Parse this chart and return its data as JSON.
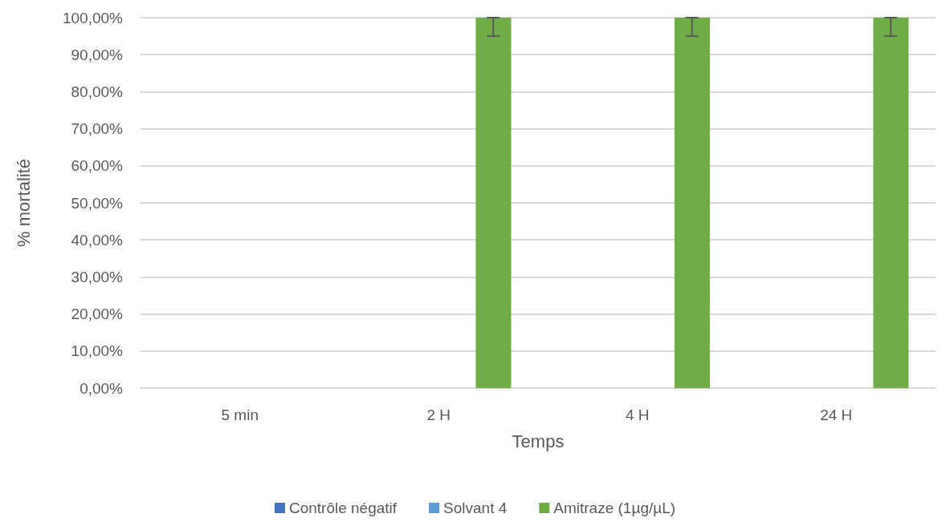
{
  "chart_data": {
    "type": "bar",
    "xlabel": "Temps",
    "ylabel": "% mortalité",
    "categories": [
      "5 min",
      "2 H",
      "4 H",
      "24 H"
    ],
    "series": [
      {
        "name": "Contrôle négatif",
        "color": "#4472c4",
        "values": [
          0,
          0,
          0,
          0
        ]
      },
      {
        "name": "Solvant 4",
        "color": "#5b9bd5",
        "values": [
          0,
          0,
          0,
          0
        ]
      },
      {
        "name": "Amitraze (1µg/µL)",
        "color": "#70ad47",
        "values": [
          0,
          100,
          100,
          100
        ],
        "errors": [
          null,
          [
            95,
            100
          ],
          [
            95,
            100
          ],
          [
            95,
            100
          ]
        ]
      }
    ],
    "ylim": [
      0,
      100
    ],
    "yticks": [
      {
        "value": 0,
        "label": "0,00%"
      },
      {
        "value": 10,
        "label": "10,00%"
      },
      {
        "value": 20,
        "label": "20,00%"
      },
      {
        "value": 30,
        "label": "30,00%"
      },
      {
        "value": 40,
        "label": "40,00%"
      },
      {
        "value": 50,
        "label": "50,00%"
      },
      {
        "value": 60,
        "label": "60,00%"
      },
      {
        "value": 70,
        "label": "70,00%"
      },
      {
        "value": 80,
        "label": "80,00%"
      },
      {
        "value": 90,
        "label": "90,00%"
      },
      {
        "value": 100,
        "label": "100,00%"
      }
    ],
    "grid": "y",
    "legend": "bottom"
  }
}
